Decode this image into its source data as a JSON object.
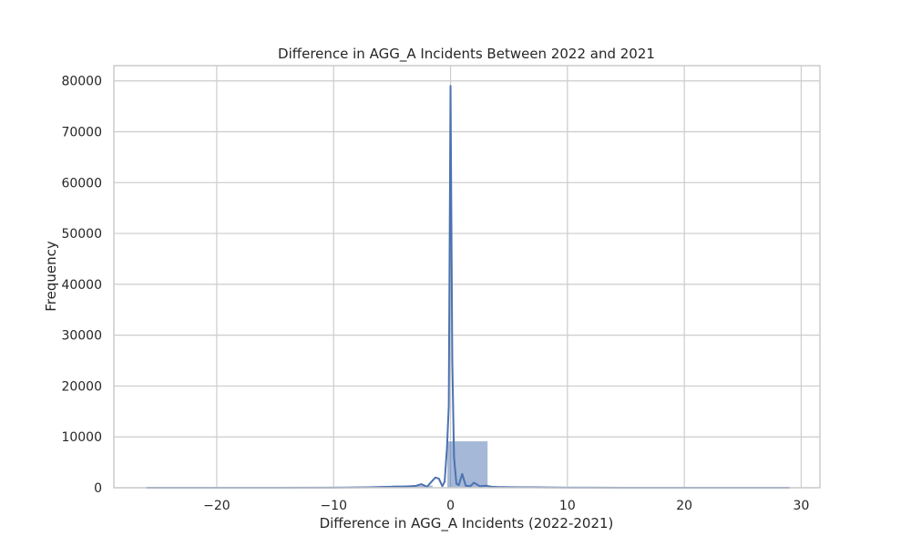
{
  "chart_data": {
    "type": "bar",
    "title": "Difference in AGG_A Incidents Between 2022 and 2021",
    "xlabel": "Difference in AGG_A Incidents (2022-2021)",
    "ylabel": "Frequency",
    "xlim": [
      -28.8,
      31.6
    ],
    "ylim": [
      0,
      83000
    ],
    "grid": true,
    "x_ticks": [
      -20,
      -10,
      0,
      10,
      20,
      30
    ],
    "x_tick_labels": [
      "−20",
      "−10",
      "0",
      "10",
      "20",
      "30"
    ],
    "y_ticks": [
      0,
      10000,
      20000,
      30000,
      40000,
      50000,
      60000,
      70000,
      80000
    ],
    "y_tick_labels": [
      "0",
      "10000",
      "20000",
      "30000",
      "40000",
      "50000",
      "60000",
      "70000",
      "80000"
    ],
    "bars": [
      {
        "x0": -26.0,
        "x1": -22.5,
        "value": 30
      },
      {
        "x0": -22.5,
        "x1": -19.0,
        "value": 20
      },
      {
        "x0": -19.0,
        "x1": -15.5,
        "value": 30
      },
      {
        "x0": -15.5,
        "x1": -12.0,
        "value": 60
      },
      {
        "x0": -12.0,
        "x1": -8.5,
        "value": 100
      },
      {
        "x0": -8.5,
        "x1": -5.0,
        "value": 250
      },
      {
        "x0": -5.0,
        "x1": -1.5,
        "value": 500
      },
      {
        "x0": -1.5,
        "x1": 2.0,
        "value": 60
      },
      {
        "x0": -0.3,
        "x1": 3.2,
        "value": 9200
      },
      {
        "x0": 3.2,
        "x1": 6.7,
        "value": 300
      },
      {
        "x0": 6.7,
        "x1": 10.2,
        "value": 150
      },
      {
        "x0": 10.2,
        "x1": 13.7,
        "value": 80
      },
      {
        "x0": 13.7,
        "x1": 17.2,
        "value": 50
      },
      {
        "x0": 17.2,
        "x1": 20.7,
        "value": 40
      },
      {
        "x0": 20.7,
        "x1": 24.2,
        "value": 30
      },
      {
        "x0": 24.2,
        "x1": 27.7,
        "value": 30
      },
      {
        "x0": 27.7,
        "x1": 29.0,
        "value": 20
      }
    ],
    "kde_line": {
      "x": [
        -26,
        -20,
        -15,
        -10,
        -8,
        -7,
        -6,
        -5,
        -4,
        -3.5,
        -3,
        -2.5,
        -2,
        -1.7,
        -1.3,
        -1,
        -0.7,
        -0.5,
        -0.3,
        -0.15,
        0,
        0.15,
        0.3,
        0.5,
        0.7,
        1,
        1.3,
        1.7,
        2,
        2.5,
        3,
        3.5,
        4,
        5,
        6,
        7,
        8,
        9,
        10,
        12,
        15,
        20,
        25,
        29
      ],
      "y": [
        0,
        0,
        10,
        30,
        60,
        100,
        150,
        200,
        250,
        300,
        350,
        700,
        200,
        1000,
        2000,
        1800,
        300,
        1200,
        8000,
        16000,
        79000,
        25000,
        6000,
        800,
        500,
        2700,
        400,
        300,
        1000,
        300,
        400,
        200,
        150,
        120,
        100,
        80,
        60,
        40,
        30,
        20,
        10,
        5,
        0,
        0
      ]
    }
  },
  "colors": {
    "bar_fill": "#4c72b0",
    "line": "#4c72b0",
    "grid": "#cccccc",
    "axis_frame": "#cccccc",
    "text": "#262626"
  }
}
